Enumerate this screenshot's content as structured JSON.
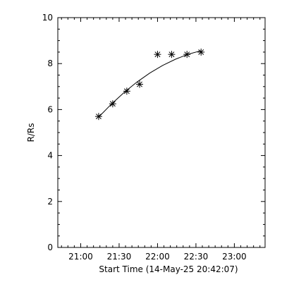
{
  "chart_data": {
    "type": "scatter",
    "title": "",
    "xlabel": "Start Time (14-May-25 20:42:07)",
    "ylabel": "R/Rs",
    "xlim": [
      "20:42:07",
      "23:24:00"
    ],
    "ylim": [
      0,
      10
    ],
    "grid": false,
    "x_tick_labels": [
      "21:00",
      "21:30",
      "22:00",
      "22:30",
      "23:00"
    ],
    "y_tick_labels": [
      "0",
      "2",
      "4",
      "6",
      "8",
      "10"
    ],
    "series": [
      {
        "marker": "asterisk",
        "x": [
          "21:14",
          "21:25",
          "21:36",
          "21:46",
          "22:00",
          "22:11",
          "22:23",
          "22:34"
        ],
        "y": [
          5.7,
          6.25,
          6.8,
          7.1,
          8.4,
          8.4,
          8.4,
          8.5
        ]
      }
    ],
    "fit_curve": {
      "kind": "quadratic",
      "x": [
        "21:14",
        "21:24",
        "21:34",
        "21:44",
        "21:54",
        "22:04",
        "22:14",
        "22:24",
        "22:34"
      ],
      "y": [
        5.67,
        6.24,
        6.75,
        7.2,
        7.59,
        7.92,
        8.19,
        8.41,
        8.56
      ]
    },
    "colors": {
      "axis": "#000000",
      "marker": "#000000",
      "curve": "#000000",
      "background": "#ffffff"
    }
  }
}
